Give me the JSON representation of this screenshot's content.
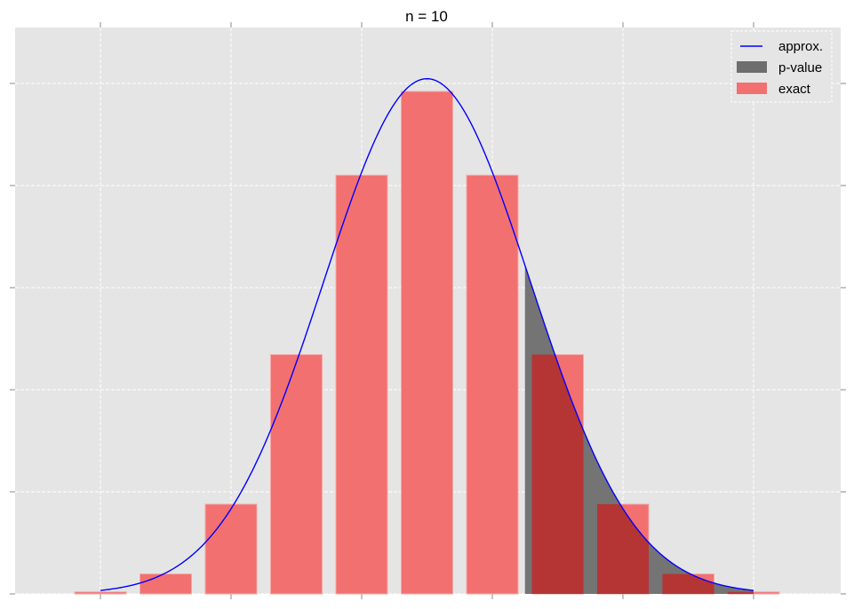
{
  "chart_data": {
    "type": "bar",
    "title": "n = 10",
    "xlabel": "",
    "ylabel": "",
    "x": [
      0,
      1,
      2,
      3,
      4,
      5,
      6,
      7,
      8,
      9,
      10
    ],
    "series": [
      {
        "name": "exact",
        "kind": "bar",
        "color": "#f26c6c",
        "values": [
          0.000977,
          0.009766,
          0.043945,
          0.117188,
          0.205078,
          0.246094,
          0.205078,
          0.117188,
          0.043945,
          0.009766,
          0.000977
        ]
      },
      {
        "name": "approx.",
        "kind": "line",
        "color": "#0000ff",
        "mean": 5,
        "sd": 1.5811,
        "x_range": [
          0,
          10
        ]
      },
      {
        "name": "p-value",
        "kind": "area",
        "color": "#6e6e6e",
        "x_range": [
          6.5,
          10
        ]
      }
    ],
    "xlim": [
      -1.3,
      11.3
    ],
    "ylim": [
      0,
      0.2739
    ],
    "x_ticks": [
      0,
      2,
      4,
      6,
      8,
      10
    ],
    "y_ticks": [
      0,
      0.05,
      0.1,
      0.15,
      0.2,
      0.25
    ],
    "tick_labels_visible": false,
    "grid": true,
    "legend": {
      "position": "upper right",
      "entries": [
        "approx.",
        "p-value",
        "exact"
      ]
    }
  },
  "legend": {
    "items": [
      {
        "label": "approx."
      },
      {
        "label": "p-value"
      },
      {
        "label": "exact"
      }
    ]
  }
}
